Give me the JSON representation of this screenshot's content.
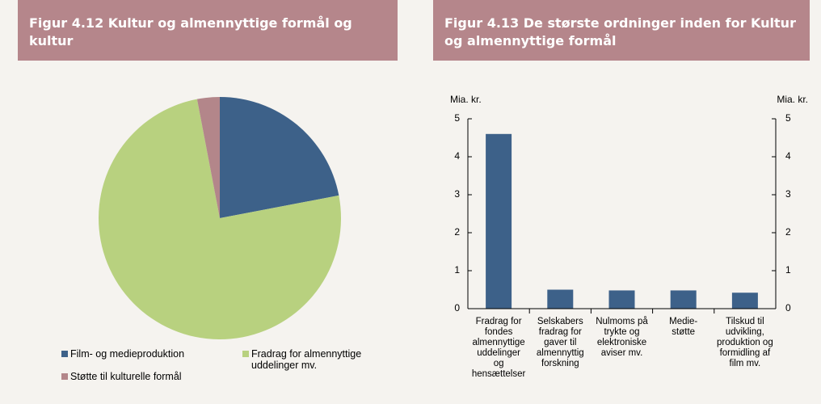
{
  "chart_data": [
    {
      "type": "pie",
      "title": "Figur 4.12  Kultur og almennyttige formål og kultur",
      "categories": [
        "Film- og medieproduktion",
        "Fradrag for almennyttige\nuddelinger mv.",
        "Støtte til kulturelle formål"
      ],
      "values": [
        22,
        75,
        3
      ],
      "colors": [
        "#3d6189",
        "#b8d17f",
        "#b3868a"
      ]
    },
    {
      "type": "bar",
      "title": "Figur 4.13  De største ordninger inden for Kultur og almennyttige formål",
      "ylabel": "Mia. kr.",
      "y2label": "Mia. kr.",
      "categories": [
        "Fradrag for\nfondes\nalmennyttige\nuddelinger\nog\nhensættelser",
        "Selskabers\nfradrag for\ngaver til\nalmennyttig\nforskning",
        "Nulmoms på\ntrykte og\nelektroniske\naviser mv.",
        "Medie-\nstøtte",
        "Tilskud til\nudvikling,\nproduktion og\nformidling af\nfilm mv."
      ],
      "values": [
        4.6,
        0.5,
        0.48,
        0.48,
        0.42
      ],
      "color": "#3d6189",
      "ylim": [
        0,
        5
      ],
      "yticks": [
        0,
        1,
        2,
        3,
        4,
        5
      ],
      "y2lim": [
        0,
        5
      ],
      "y2ticks": [
        0,
        1,
        2,
        3,
        4,
        5
      ]
    }
  ]
}
